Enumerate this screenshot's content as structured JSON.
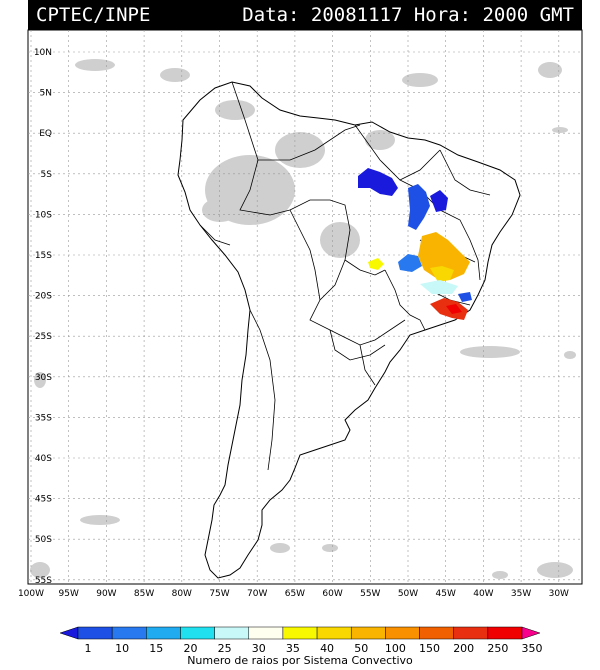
{
  "header": {
    "source": "CPTEC/INPE",
    "datetime": "Data: 20081117 Hora: 2000 GMT"
  },
  "map": {
    "lat_labels": [
      "10N",
      "5N",
      "EQ",
      "5S",
      "10S",
      "15S",
      "20S",
      "25S",
      "30S",
      "35S",
      "40S",
      "45S",
      "50S",
      "55S"
    ],
    "lon_labels": [
      "100W",
      "95W",
      "90W",
      "85W",
      "80W",
      "75W",
      "70W",
      "65W",
      "60W",
      "55W",
      "50W",
      "45W",
      "40W",
      "35W",
      "30W"
    ]
  },
  "colorbar": {
    "ticks": [
      "1",
      "10",
      "15",
      "20",
      "25",
      "30",
      "35",
      "40",
      "50",
      "100",
      "150",
      "200",
      "250",
      "350"
    ],
    "colors": [
      "#1a1adc",
      "#1e50e6",
      "#2878f0",
      "#20aaf0",
      "#20e0f0",
      "#c8f8f8",
      "#fffff0",
      "#f8f800",
      "#f8d800",
      "#f8b400",
      "#f89000",
      "#f06000",
      "#e83010",
      "#f00000",
      "#f8008c"
    ],
    "caption": "Numero de raios por Sistema Convectivo"
  }
}
